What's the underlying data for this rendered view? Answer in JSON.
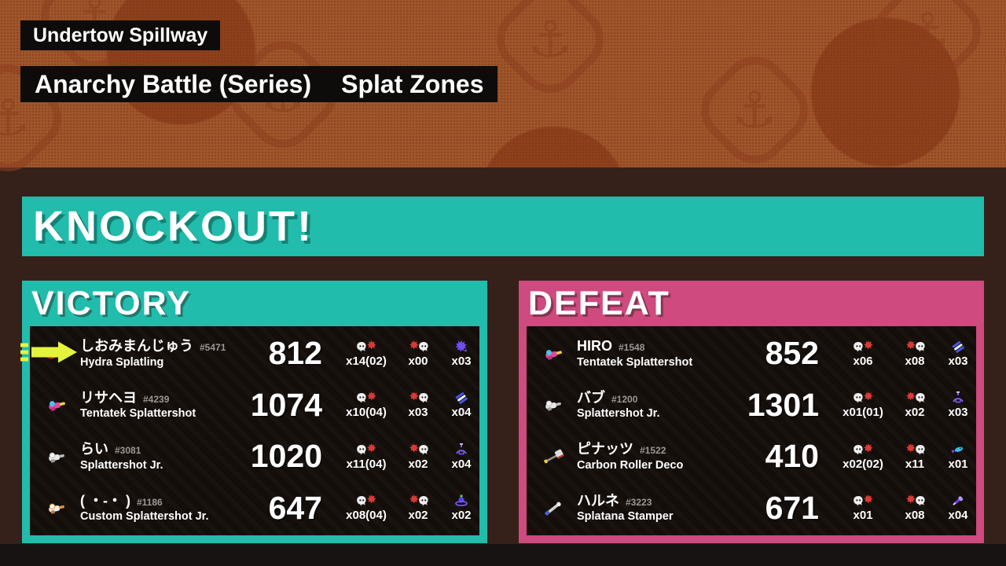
{
  "colors": {
    "banner_background": "#a0562c",
    "victory_teal": "#21bcab",
    "defeat_pink": "#cf4a7e",
    "label_black": "#0d0c0a",
    "panel_inner": "#140e0b",
    "me_arrow_yellow": "#e4f43c"
  },
  "stage": {
    "name": "Undertow Spillway"
  },
  "mode": {
    "battle": "Anarchy Battle (Series)",
    "rule": "Splat Zones"
  },
  "result_banner": {
    "text": "KNOCKOUT!"
  },
  "teams": [
    {
      "label": "VICTORY",
      "players": [
        {
          "is_me": true,
          "name": "しおみまんじゅう",
          "tag": "#5471",
          "weapon": "Hydra Splatling",
          "weapon_icon": "hydra-splatling",
          "points": "812",
          "kills": "x14(02)",
          "deaths": "x00",
          "specials": "x03",
          "special_icon": "purple-burst"
        },
        {
          "is_me": false,
          "name": "リサヘヨ",
          "tag": "#4239",
          "weapon": "Tentatek Splattershot",
          "weapon_icon": "tentatek-splattershot",
          "points": "1074",
          "kills": "x10(04)",
          "deaths": "x03",
          "specials": "x04",
          "special_icon": "killer-wail"
        },
        {
          "is_me": false,
          "name": "らい",
          "tag": "#3081",
          "weapon": "Splattershot Jr.",
          "weapon_icon": "splattershot-jr",
          "points": "1020",
          "kills": "x11(04)",
          "deaths": "x02",
          "specials": "x04",
          "special_icon": "big-bubbler"
        },
        {
          "is_me": false,
          "name": "( ・-・ )",
          "tag": "#1186",
          "weapon": "Custom Splattershot Jr.",
          "weapon_icon": "custom-splattershot-jr",
          "points": "647",
          "kills": "x08(04)",
          "deaths": "x02",
          "specials": "x02",
          "special_icon": "ink-vortex"
        }
      ]
    },
    {
      "label": "DEFEAT",
      "players": [
        {
          "is_me": false,
          "name": "HIRO",
          "tag": "#1548",
          "weapon": "Tentatek Splattershot",
          "weapon_icon": "tentatek-splattershot",
          "points": "852",
          "kills": "x06",
          "deaths": "x08",
          "specials": "x03",
          "special_icon": "killer-wail"
        },
        {
          "is_me": false,
          "name": "バブ",
          "tag": "#1200",
          "weapon": "Splattershot Jr.",
          "weapon_icon": "splattershot-jr",
          "points": "1301",
          "kills": "x01(01)",
          "deaths": "x02",
          "specials": "x03",
          "special_icon": "big-bubbler"
        },
        {
          "is_me": false,
          "name": "ピナッツ",
          "tag": "#1522",
          "weapon": "Carbon Roller Deco",
          "weapon_icon": "carbon-roller-deco",
          "points": "410",
          "kills": "x02(02)",
          "deaths": "x11",
          "specials": "x01",
          "special_icon": "blue-fish"
        },
        {
          "is_me": false,
          "name": "ハルネ",
          "tag": "#3223",
          "weapon": "Splatana Stamper",
          "weapon_icon": "splatana-stamper",
          "points": "671",
          "kills": "x01",
          "deaths": "x08",
          "specials": "x04",
          "special_icon": "purple-dart"
        }
      ]
    }
  ]
}
